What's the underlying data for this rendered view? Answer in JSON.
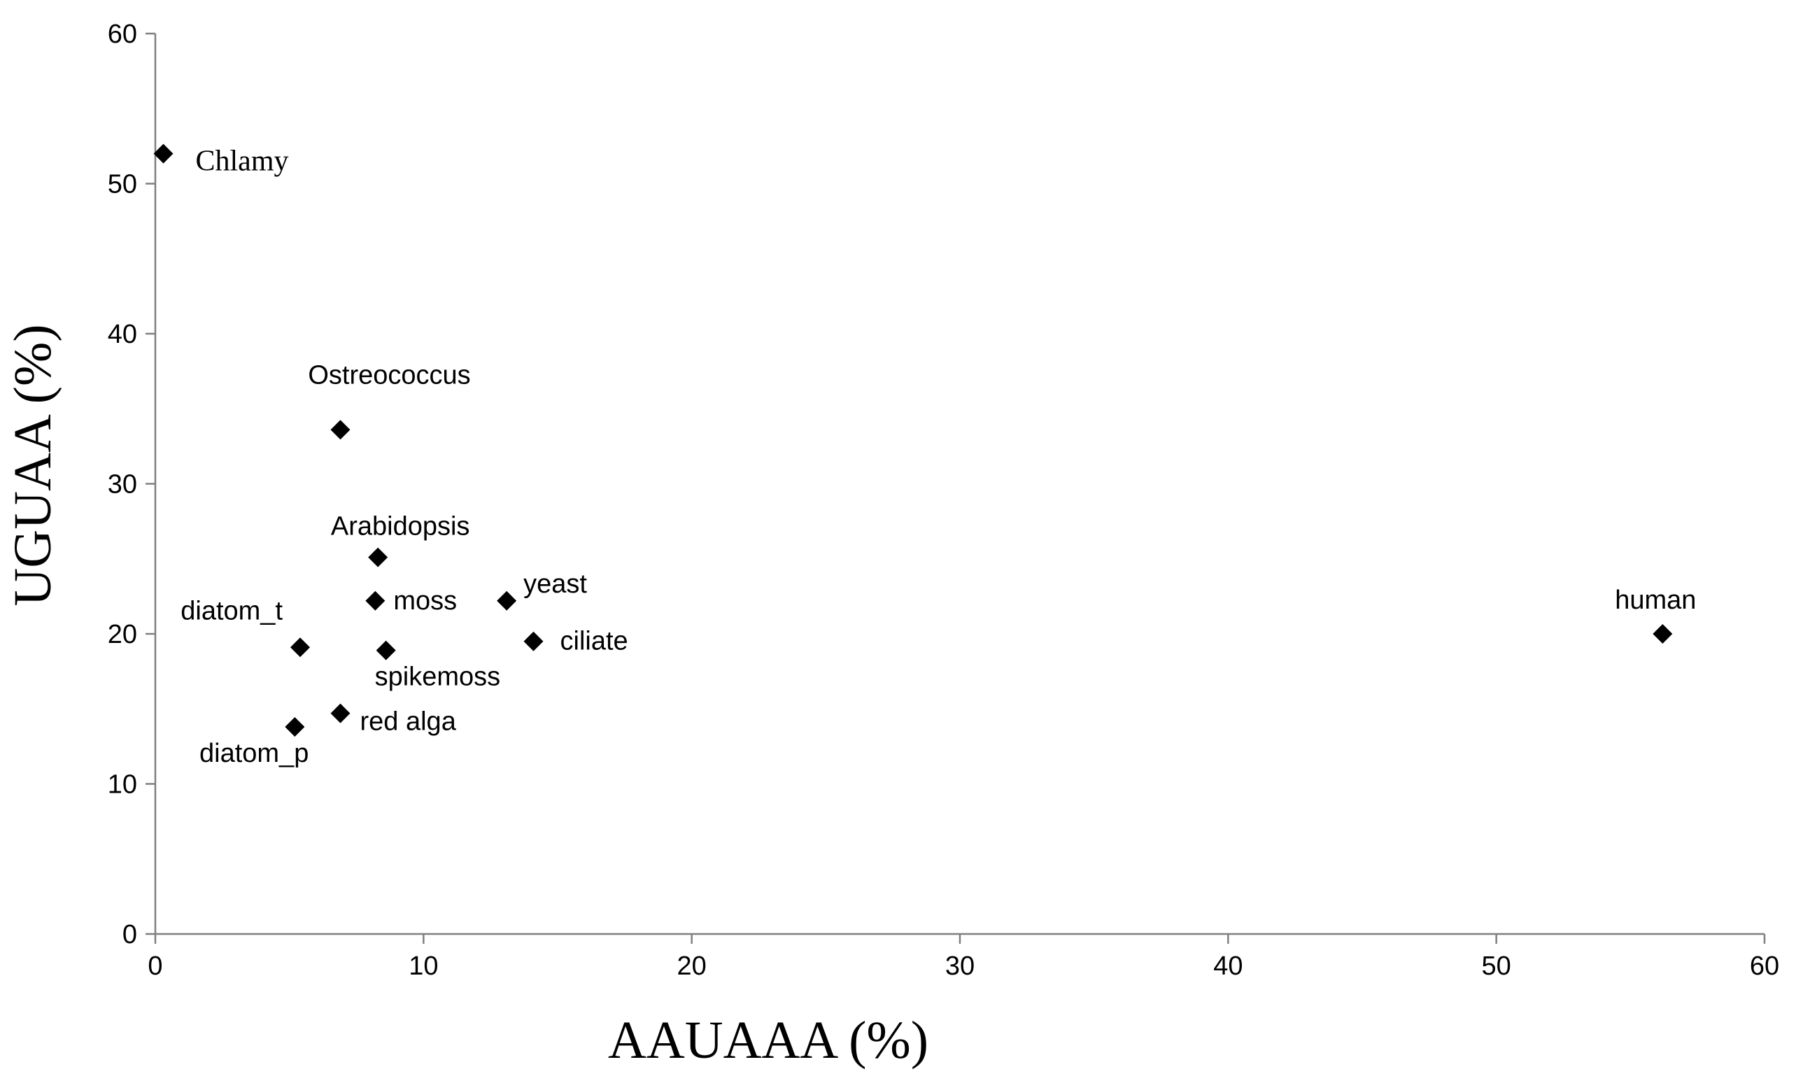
{
  "chart_data": {
    "type": "scatter",
    "xlabel": "AAUAAA (%)",
    "ylabel": "UGUAA (%)",
    "xlim": [
      0,
      60
    ],
    "ylim": [
      0,
      60
    ],
    "xticks": [
      0,
      10,
      20,
      30,
      40,
      50,
      60
    ],
    "yticks": [
      0,
      10,
      20,
      30,
      40,
      50,
      60
    ],
    "grid": false,
    "legend": "none",
    "marker": "diamond",
    "marker_color": "#000000",
    "points": [
      {
        "label": "Chlamy",
        "x": 0.3,
        "y": 52.0
      },
      {
        "label": "Ostreococcus",
        "x": 6.9,
        "y": 33.6
      },
      {
        "label": "Arabidopsis",
        "x": 8.3,
        "y": 25.1
      },
      {
        "label": "moss",
        "x": 8.2,
        "y": 22.2
      },
      {
        "label": "yeast",
        "x": 13.1,
        "y": 22.2
      },
      {
        "label": "ciliate",
        "x": 14.1,
        "y": 19.5
      },
      {
        "label": "spikemoss",
        "x": 8.6,
        "y": 18.9
      },
      {
        "label": "diatom_t",
        "x": 5.4,
        "y": 19.1
      },
      {
        "label": "red alga",
        "x": 6.9,
        "y": 14.7
      },
      {
        "label": "diatom_p",
        "x": 5.2,
        "y": 13.8
      },
      {
        "label": "human",
        "x": 56.2,
        "y": 20.0
      }
    ]
  }
}
